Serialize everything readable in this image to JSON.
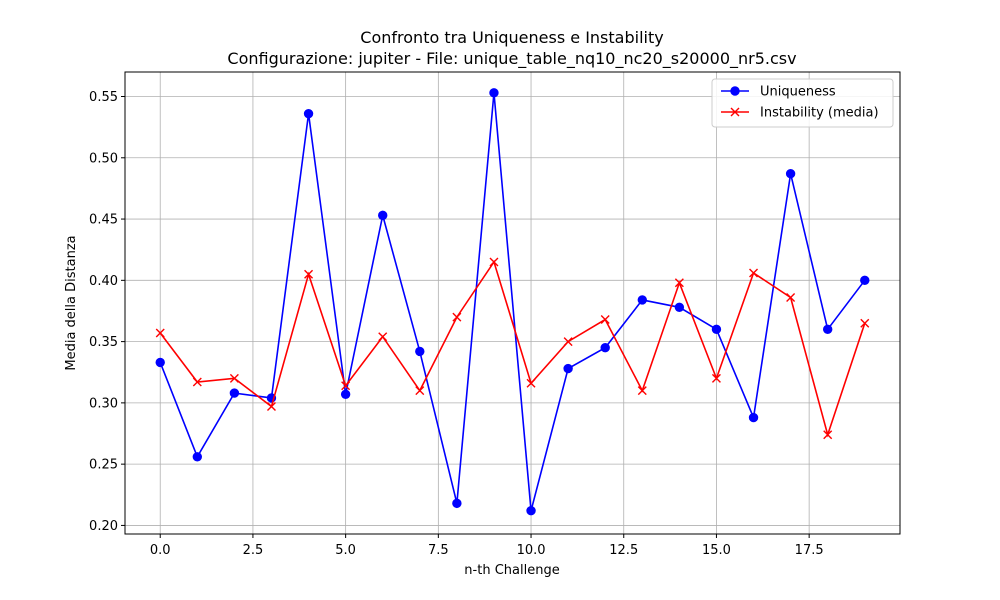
{
  "title_line1": "Confronto tra Uniqueness e Instability",
  "title_line2": "Configurazione: jupiter - File: unique_table_nq10_nc20_s20000_nr5.csv",
  "chart_data": {
    "type": "line",
    "xlabel": "n-th Challenge",
    "ylabel": "Media della Distanza",
    "xlim": [
      -0.95,
      19.95
    ],
    "ylim": [
      0.193,
      0.57
    ],
    "grid": true,
    "legend_placement": "top-right",
    "xticks": [
      0.0,
      2.5,
      5.0,
      7.5,
      10.0,
      12.5,
      15.0,
      17.5
    ],
    "xtick_labels": [
      "0.0",
      "2.5",
      "5.0",
      "7.5",
      "10.0",
      "12.5",
      "15.0",
      "17.5"
    ],
    "yticks": [
      0.2,
      0.25,
      0.3,
      0.35,
      0.4,
      0.45,
      0.5,
      0.55
    ],
    "ytick_labels": [
      "0.20",
      "0.25",
      "0.30",
      "0.35",
      "0.40",
      "0.45",
      "0.50",
      "0.55"
    ],
    "x": [
      0,
      1,
      2,
      3,
      4,
      5,
      6,
      7,
      8,
      9,
      10,
      11,
      12,
      13,
      14,
      15,
      16,
      17,
      18,
      19
    ],
    "series": [
      {
        "name": "Uniqueness",
        "color": "#0000ff",
        "marker": "circle",
        "values": [
          0.333,
          0.256,
          0.308,
          0.304,
          0.536,
          0.307,
          0.453,
          0.342,
          0.218,
          0.553,
          0.212,
          0.328,
          0.345,
          0.384,
          0.378,
          0.36,
          0.288,
          0.487,
          0.36,
          0.4
        ]
      },
      {
        "name": "Instability (media)",
        "color": "#ff0000",
        "marker": "x",
        "values": [
          0.357,
          0.317,
          0.32,
          0.297,
          0.405,
          0.314,
          0.354,
          0.31,
          0.37,
          0.415,
          0.316,
          0.35,
          0.368,
          0.31,
          0.398,
          0.32,
          0.406,
          0.386,
          0.274,
          0.365
        ]
      }
    ]
  }
}
